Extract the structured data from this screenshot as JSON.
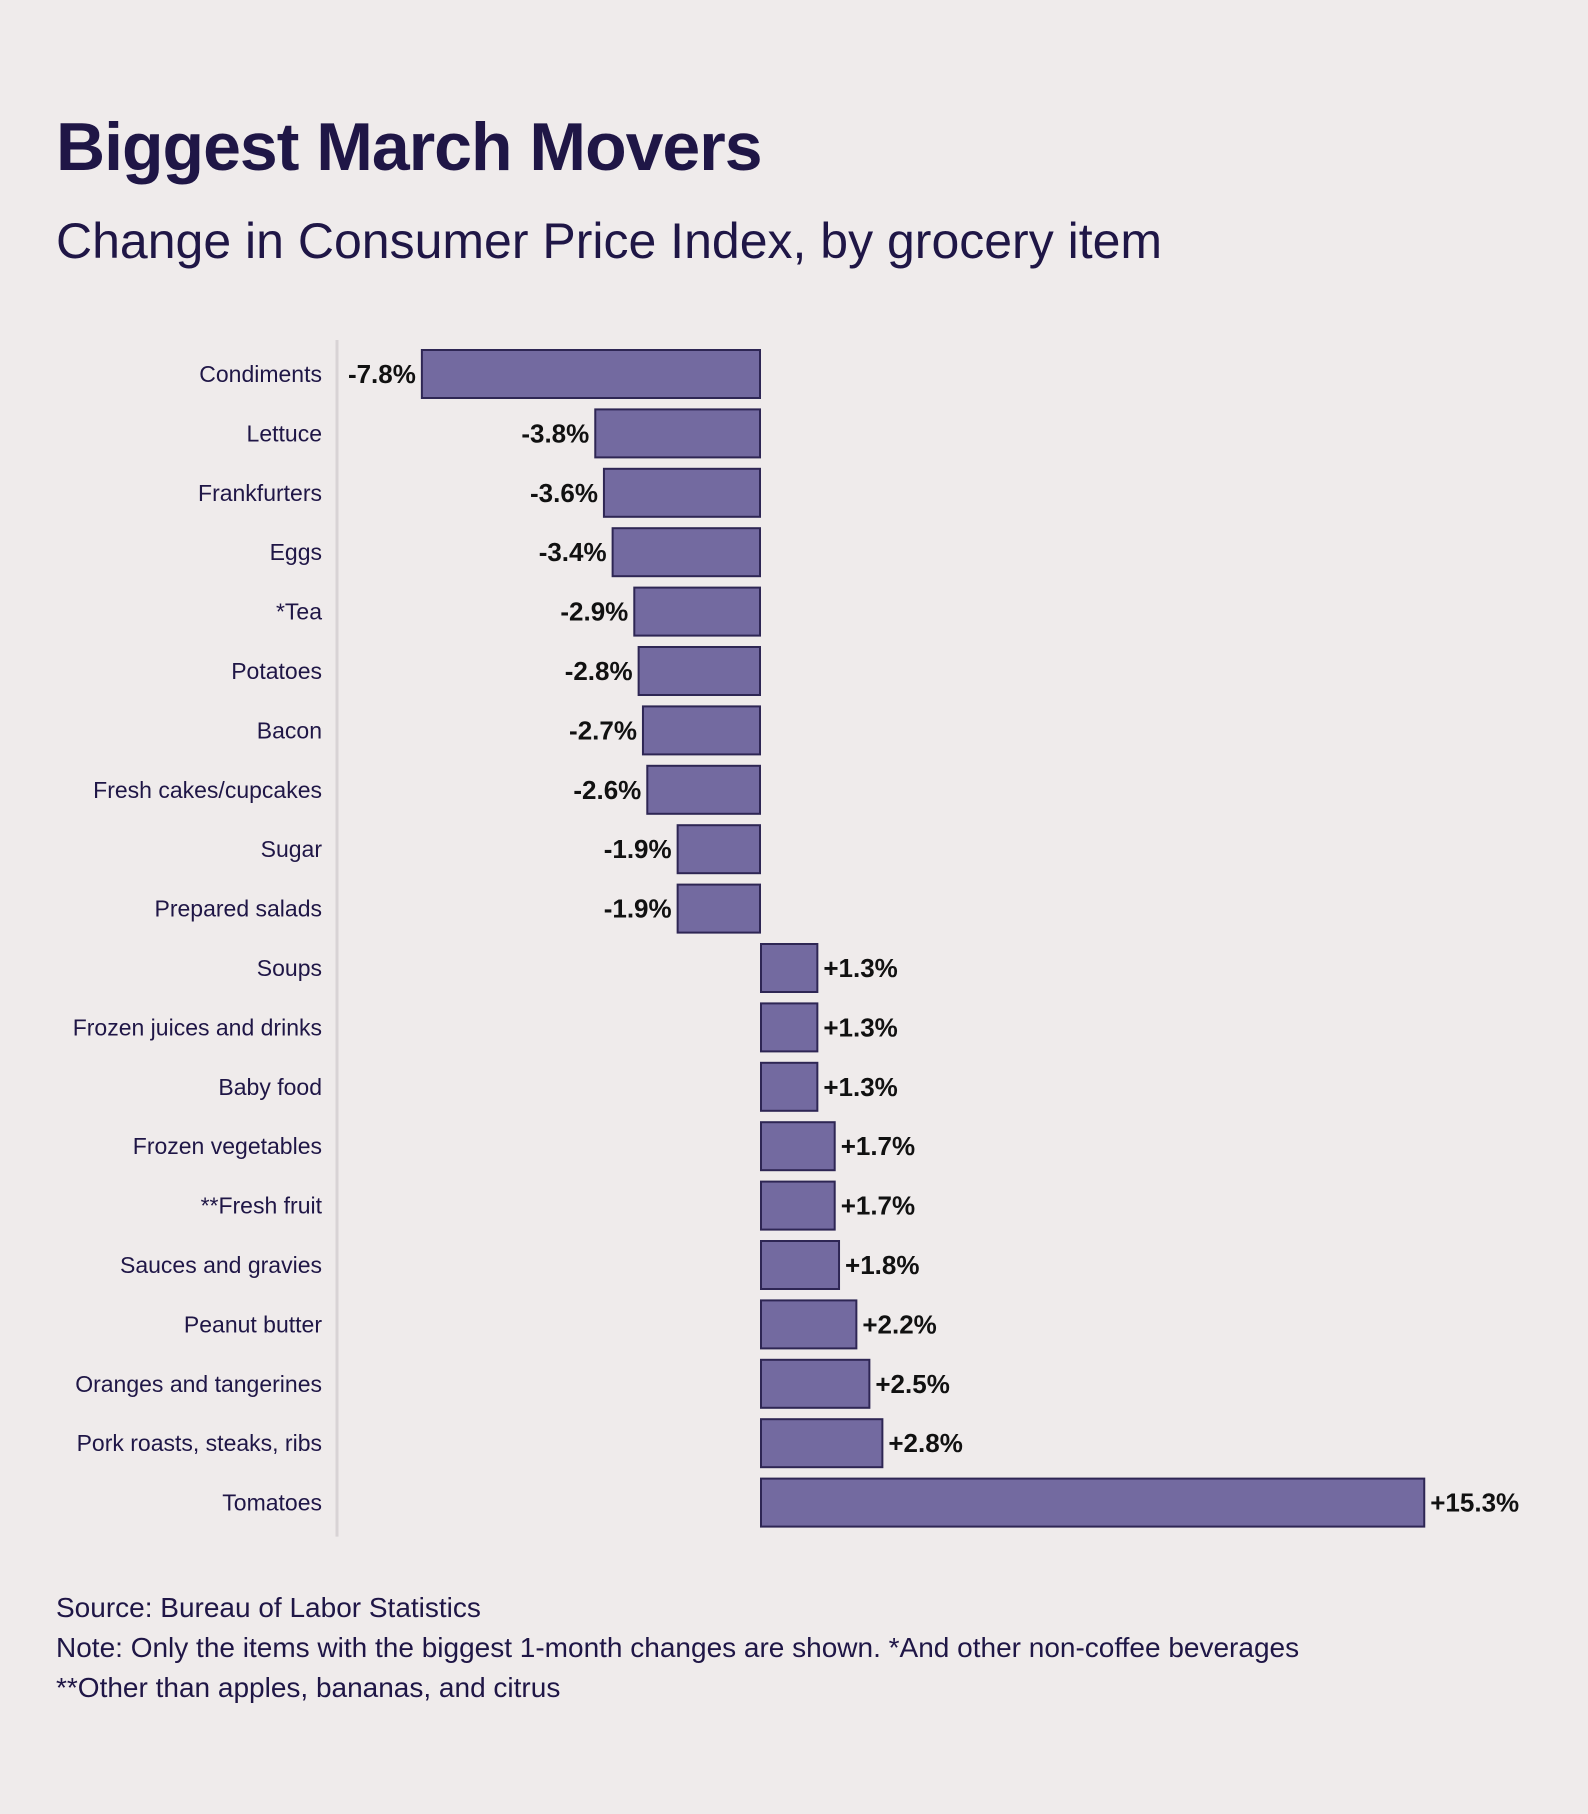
{
  "title": "Biggest March Movers",
  "subtitle": "Change in Consumer Price Index, by grocery item",
  "footer": {
    "source": "Source: Bureau of Labor Statistics",
    "note": "Note: Only the items with the biggest 1-month changes are shown. *And other non-coffee beverages **Other than apples, bananas, and citrus"
  },
  "colors": {
    "bar": "#736aa0",
    "bar_stroke": "#2e2654",
    "text": "#1f1646",
    "axis": "#d8d3d5"
  },
  "chart_data": {
    "type": "bar",
    "orientation": "horizontal",
    "title": "Biggest March Movers",
    "subtitle": "Change in Consumer Price Index, by grocery item",
    "xlabel": "",
    "ylabel": "",
    "unit": "%",
    "xlim": [
      -7.8,
      15.3
    ],
    "grid": false,
    "categories": [
      "Condiments",
      "Lettuce",
      "Frankfurters",
      "Eggs",
      "*Tea",
      "Potatoes",
      "Bacon",
      "Fresh cakes/cupcakes",
      "Sugar",
      "Prepared salads",
      "Soups",
      "Frozen juices and drinks",
      "Baby food",
      "Frozen vegetables",
      "**Fresh fruit",
      "Sauces and gravies",
      "Peanut butter",
      "Oranges and tangerines",
      "Pork roasts, steaks, ribs",
      "Tomatoes"
    ],
    "values": [
      -7.8,
      -3.8,
      -3.6,
      -3.4,
      -2.9,
      -2.8,
      -2.7,
      -2.6,
      -1.9,
      -1.9,
      1.3,
      1.3,
      1.3,
      1.7,
      1.7,
      1.8,
      2.2,
      2.5,
      2.8,
      15.3
    ],
    "labels": [
      "-7.8%",
      "-3.8%",
      "-3.6%",
      "-3.4%",
      "-2.9%",
      "-2.8%",
      "-2.7%",
      "-2.6%",
      "-1.9%",
      "-1.9%",
      "+1.3%",
      "+1.3%",
      "+1.3%",
      "+1.7%",
      "+1.7%",
      "+1.8%",
      "+2.2%",
      "+2.5%",
      "+2.8%",
      "+15.3%"
    ]
  }
}
